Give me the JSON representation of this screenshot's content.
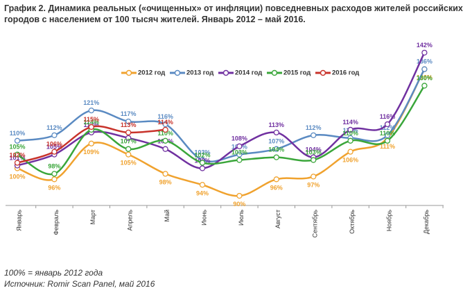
{
  "chart_data": {
    "type": "line",
    "title": "График 2. Динамика реальных («очищенных» от инфляции) повседневных расходов жителей российских городов с населением от 100 тысяч жителей. Январь 2012 – май 2016.",
    "notes": [
      "100% = январь 2012 года",
      "Источник: Romir Scan Panel, май 2016"
    ],
    "categories": [
      "Январь",
      "Февраль",
      "Март",
      "Апрель",
      "Май",
      "Июнь",
      "Июль",
      "Август",
      "Сентябрь",
      "Октябрь",
      "Ноябрь",
      "Декабрь"
    ],
    "ylim": [
      86.5,
      146
    ],
    "series": [
      {
        "name": "2012 год",
        "color": "#f0a22e",
        "values": [
          100,
          96,
          109,
          105,
          98,
          94,
          90,
          96,
          97,
          106,
          111,
          136
        ],
        "value_labels": [
          "100%",
          "96%",
          "109%",
          "105%",
          "98%",
          "94%",
          "90%",
          "96%",
          "97%",
          "106%",
          "111%",
          "136%"
        ]
      },
      {
        "name": "2013 год",
        "color": "#5a8ac2",
        "values": [
          110,
          112,
          121,
          117,
          116,
          103,
          105,
          107,
          112,
          111,
          112,
          136
        ],
        "value_labels": [
          "110%",
          "112%",
          "121%",
          "117%",
          "116%",
          "103%",
          "105%",
          "107%",
          "112%",
          "111%",
          "112%",
          "136%"
        ]
      },
      {
        "name": "2014 год",
        "color": "#7030a0",
        "values": [
          101,
          105,
          113,
          111,
          107,
          100,
          108,
          113,
          104,
          114,
          116,
          142
        ],
        "value_labels": [
          "101%",
          "105%",
          "113%",
          null,
          "107%",
          "100%",
          "108%",
          "113%",
          "104%",
          "114%",
          "116%",
          "142%"
        ]
      },
      {
        "name": "2015 год",
        "color": "#3aa63a",
        "values": [
          105,
          98,
          114,
          107,
          110,
          102,
          103,
          104,
          103,
          110,
          110,
          130
        ],
        "value_labels": [
          "105%",
          "98%",
          "114%",
          "107%",
          "110%",
          "102%",
          "103%",
          "104%",
          "103%",
          "110%",
          "110%",
          "130%"
        ]
      },
      {
        "name": "2016 год",
        "color": "#c8332b",
        "values": [
          102,
          106,
          115,
          113,
          114,
          null,
          null,
          null,
          null,
          null,
          null,
          null
        ],
        "value_labels": [
          "102%",
          "106%",
          "115%",
          "113%",
          "114%",
          null,
          null,
          null,
          null,
          null,
          null,
          null
        ]
      }
    ]
  }
}
